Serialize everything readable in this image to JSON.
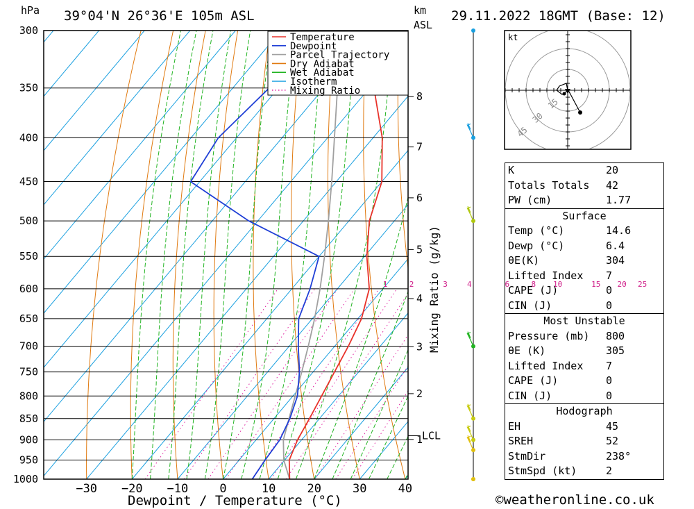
{
  "header": {
    "pressure_unit": "hPa",
    "location": "39°04'N 26°36'E 105m ASL",
    "km_label": "km",
    "asl_label": "ASL",
    "datetime": "29.11.2022 18GMT (Base: 12)"
  },
  "legend": [
    {
      "label": "Temperature",
      "color": "#e8322a",
      "style": "solid"
    },
    {
      "label": "Dewpoint",
      "color": "#1f3fd6",
      "style": "solid"
    },
    {
      "label": "Parcel Trajectory",
      "color": "#a0a0a0",
      "style": "solid"
    },
    {
      "label": "Dry Adiabat",
      "color": "#e07a10",
      "style": "solid"
    },
    {
      "label": "Wet Adiabat",
      "color": "#22b422",
      "style": "solid"
    },
    {
      "label": "Isotherm",
      "color": "#1aa0e0",
      "style": "solid"
    },
    {
      "label": "Mixing Ratio",
      "color": "#e020a0",
      "style": "dotted"
    }
  ],
  "chart_data": {
    "type": "skew-t",
    "xlabel": "Dewpoint / Temperature (°C)",
    "ylabel": "hPa",
    "mixing_ratio_axis_label": "Mixing Ratio (g/kg)",
    "x_range": [
      -40,
      40
    ],
    "pressure_range": [
      1000,
      300
    ],
    "pressure_ticks": [
      300,
      350,
      400,
      450,
      500,
      550,
      600,
      650,
      700,
      750,
      800,
      850,
      900,
      950,
      1000
    ],
    "x_ticks": [
      -30,
      -20,
      -10,
      0,
      10,
      20,
      30,
      40
    ],
    "km_ticks": [
      {
        "km": "8",
        "p": 358
      },
      {
        "km": "7",
        "p": 410
      },
      {
        "km": "6",
        "p": 470
      },
      {
        "km": "5",
        "p": 540
      },
      {
        "km": "4",
        "p": 616
      },
      {
        "km": "3",
        "p": 701
      },
      {
        "km": "2",
        "p": 795
      },
      {
        "km": "1",
        "p": 899
      }
    ],
    "lcl": {
      "label": "LCL",
      "p": 890
    },
    "mixing_ratio_labels": [
      "1",
      "2",
      "3",
      "4",
      "6",
      "8",
      "10",
      "15",
      "20",
      "25"
    ],
    "mixing_ratio_label_positions": [
      {
        "label": "1",
        "t": 0.5
      },
      {
        "label": "2",
        "t": 6.3
      },
      {
        "label": "3",
        "t": 13.7
      },
      {
        "label": "4",
        "t": 19.0
      },
      {
        "label": "6",
        "t": 27.3
      },
      {
        "label": "8",
        "t": 33.1
      },
      {
        "label": "10",
        "t": 38.4
      },
      {
        "label": "15",
        "t": 46.8
      },
      {
        "label": "20",
        "t": 52.5
      },
      {
        "label": "25",
        "t": 57.0
      }
    ],
    "series": [
      {
        "name": "Temperature",
        "color": "#e8322a",
        "points": [
          [
            1000,
            14.6
          ],
          [
            950,
            11.0
          ],
          [
            900,
            9.1
          ],
          [
            850,
            7.8
          ],
          [
            800,
            6.3
          ],
          [
            750,
            4.7
          ],
          [
            700,
            3.0
          ],
          [
            650,
            0.8
          ],
          [
            600,
            -3.0
          ],
          [
            550,
            -9.5
          ],
          [
            500,
            -15.5
          ],
          [
            450,
            -20.0
          ],
          [
            400,
            -28.0
          ],
          [
            350,
            -39.0
          ],
          [
            300,
            -51.0
          ]
        ]
      },
      {
        "name": "Dewpoint",
        "color": "#1f3fd6",
        "points": [
          [
            1000,
            6.4
          ],
          [
            950,
            5.7
          ],
          [
            900,
            5.2
          ],
          [
            850,
            3.5
          ],
          [
            800,
            1.0
          ],
          [
            750,
            -3.0
          ],
          [
            700,
            -8.0
          ],
          [
            650,
            -13.0
          ],
          [
            600,
            -16.0
          ],
          [
            550,
            -20.0
          ],
          [
            500,
            -42.0
          ],
          [
            450,
            -62.0
          ],
          [
            400,
            -64.0
          ],
          [
            350,
            -62.0
          ],
          [
            300,
            -64.0
          ]
        ]
      },
      {
        "name": "Parcel Trajectory",
        "color": "#a0a0a0",
        "points": [
          [
            1000,
            14.6
          ],
          [
            950,
            9.8
          ],
          [
            900,
            6.0
          ],
          [
            850,
            3.3
          ],
          [
            800,
            0.5
          ],
          [
            750,
            -2.5
          ],
          [
            700,
            -5.8
          ],
          [
            650,
            -9.5
          ],
          [
            600,
            -13.8
          ],
          [
            550,
            -18.8
          ],
          [
            500,
            -24.5
          ],
          [
            450,
            -31.0
          ],
          [
            400,
            -38.5
          ],
          [
            350,
            -47.0
          ],
          [
            300,
            -57.0
          ]
        ]
      }
    ]
  },
  "wind_profile": [
    {
      "p": 300,
      "color": "#1aa0e0"
    },
    {
      "p": 400,
      "color": "#1aa0e0"
    },
    {
      "p": 500,
      "color": "#b0c810"
    },
    {
      "p": 700,
      "color": "#22b422"
    },
    {
      "p": 850,
      "color": "#c8cc10"
    },
    {
      "p": 900,
      "color": "#c8cc10"
    },
    {
      "p": 925,
      "color": "#e0c010"
    },
    {
      "p": 1000,
      "color": "#e0c010"
    }
  ],
  "hodograph": {
    "unit_label": "kt",
    "ring_labels": [
      "15",
      "30",
      "45"
    ],
    "path_kt": [
      [
        0,
        0
      ],
      [
        -1,
        5
      ],
      [
        -6,
        3
      ],
      [
        -8,
        0
      ],
      [
        -4,
        -3
      ],
      [
        -1,
        -1
      ],
      [
        1,
        -1
      ],
      [
        9,
        -16
      ]
    ]
  },
  "indices": {
    "k_label": "K",
    "k": "20",
    "tt_label": "Totals Totals",
    "tt": "42",
    "pw_label": "PW (cm)",
    "pw": "1.77"
  },
  "surface": {
    "title": "Surface",
    "temp_label": "Temp (°C)",
    "temp": "14.6",
    "dewp_label": "Dewp (°C)",
    "dewp": "6.4",
    "theta_label": "θE(K)",
    "theta": "304",
    "li_label": "Lifted Index",
    "li": "7",
    "cape_label": "CAPE (J)",
    "cape": "0",
    "cin_label": "CIN (J)",
    "cin": "0"
  },
  "most_unstable": {
    "title": "Most Unstable",
    "pressure_label": "Pressure (mb)",
    "pressure": "800",
    "theta_label": "θE (K)",
    "theta": "305",
    "li_label": "Lifted Index",
    "li": "7",
    "cape_label": "CAPE (J)",
    "cape": "0",
    "cin_label": "CIN (J)",
    "cin": "0"
  },
  "hodograph_params": {
    "title": "Hodograph",
    "eh_label": "EH",
    "eh": "45",
    "sreh_label": "SREH",
    "sreh": "52",
    "stmdir_label": "StmDir",
    "stmdir": "238°",
    "stmspd_label": "StmSpd (kt)",
    "stmspd": "2"
  },
  "footer": "©weatheronline.co.uk"
}
